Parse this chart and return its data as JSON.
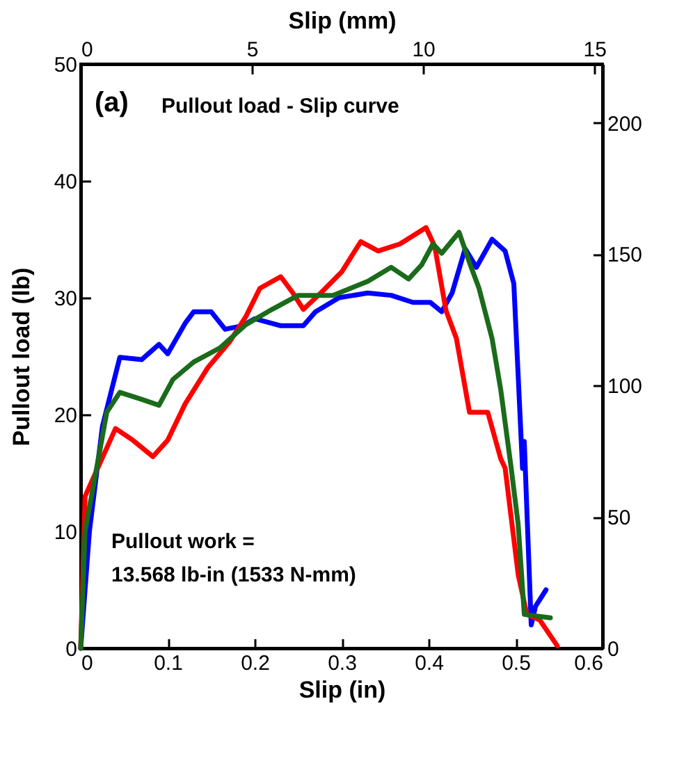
{
  "chart_data": {
    "type": "line",
    "annotations": [
      "(a)",
      "Pullout load - Slip curve",
      "Pullout work =",
      "13.568 lb-in (1533 N-mm)"
    ],
    "xlabel": "Slip (in)",
    "ylabel": "Pullout load (lb)",
    "x2label": "Slip (mm)",
    "xlim": [
      0,
      0.6
    ],
    "xticks": [
      0,
      0.1,
      0.2,
      0.3,
      0.4,
      0.5,
      0.6
    ],
    "ylim": [
      0,
      50
    ],
    "yticks": [
      0,
      10,
      20,
      30,
      40,
      50
    ],
    "x2lim": [
      0,
      15.24
    ],
    "x2ticks": [
      0,
      5,
      10,
      15
    ],
    "y2lim": [
      0,
      222.4
    ],
    "y2ticks": [
      0,
      50,
      100,
      150,
      200
    ],
    "series": [
      {
        "color": "#0000ff",
        "x": [
          0,
          0.01,
          0.025,
          0.045,
          0.07,
          0.09,
          0.1,
          0.12,
          0.13,
          0.15,
          0.166,
          0.186,
          0.2,
          0.23,
          0.256,
          0.27,
          0.297,
          0.33,
          0.357,
          0.382,
          0.402,
          0.415,
          0.427,
          0.442,
          0.455,
          0.473,
          0.488,
          0.498,
          0.508,
          0.51,
          0.518,
          0.523,
          0.535
        ],
        "values": [
          0,
          10,
          19,
          24.9,
          24.7,
          26,
          25.2,
          27.8,
          28.8,
          28.8,
          27.3,
          27.6,
          28.2,
          27.6,
          27.6,
          28.8,
          30,
          30.4,
          30.2,
          29.6,
          29.6,
          28.8,
          30.4,
          34.2,
          32.6,
          35,
          34,
          31.2,
          15.4,
          17.7,
          2,
          3.6,
          5
        ]
      },
      {
        "color": "#ff0000",
        "x": [
          0,
          0.005,
          0.04,
          0.06,
          0.083,
          0.1,
          0.12,
          0.146,
          0.171,
          0.19,
          0.206,
          0.23,
          0.244,
          0.256,
          0.276,
          0.3,
          0.322,
          0.342,
          0.367,
          0.397,
          0.407,
          0.42,
          0.432,
          0.447,
          0.468,
          0.483,
          0.488,
          0.503,
          0.513,
          0.528,
          0.548
        ],
        "values": [
          0,
          13,
          18.8,
          17.8,
          16.4,
          17.8,
          20.9,
          24,
          26.2,
          28.4,
          30.8,
          31.8,
          30.4,
          29,
          30.4,
          32.2,
          34.8,
          34,
          34.6,
          36,
          34.4,
          28.9,
          26.5,
          20.2,
          20.2,
          16.2,
          15.4,
          6.3,
          2.9,
          2.4,
          0.2
        ]
      },
      {
        "color": "#1a6b1a",
        "x": [
          0,
          0.005,
          0.03,
          0.045,
          0.07,
          0.09,
          0.106,
          0.13,
          0.16,
          0.19,
          0.22,
          0.25,
          0.29,
          0.33,
          0.357,
          0.377,
          0.392,
          0.405,
          0.415,
          0.435,
          0.448,
          0.458,
          0.473,
          0.483,
          0.495,
          0.503,
          0.51,
          0.54
        ],
        "values": [
          0,
          10,
          20.2,
          21.9,
          21.3,
          20.8,
          23,
          24.5,
          25.7,
          27.7,
          29,
          30.2,
          30.2,
          31.4,
          32.6,
          31.6,
          32.8,
          34.6,
          33.8,
          35.6,
          32.8,
          30.8,
          26.5,
          22.1,
          15.4,
          10.6,
          2.9,
          2.6
        ]
      }
    ]
  }
}
